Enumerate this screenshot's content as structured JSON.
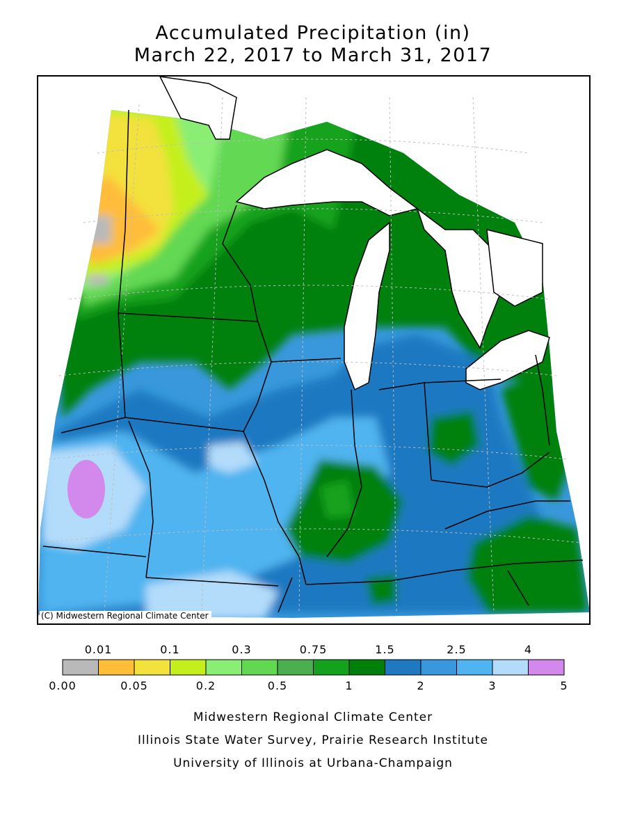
{
  "title": {
    "line1": "Accumulated Precipitation (in)",
    "line2": "March 22, 2017 to March 31, 2017"
  },
  "map": {
    "copyright": "(C) Midwestern Regional Climate Center"
  },
  "legend": {
    "top_labels": [
      "0.01",
      "0.1",
      "0.3",
      "0.75",
      "1.5",
      "2.5",
      "4"
    ],
    "bottom_labels": [
      "0.00",
      "0.05",
      "0.2",
      "0.5",
      "1",
      "2",
      "3",
      "5"
    ],
    "colors": [
      "#b9b9b9",
      "#ffbd3a",
      "#f3e13c",
      "#c5ef1c",
      "#8aee74",
      "#62d852",
      "#4caf4f",
      "#14a21e",
      "#00800a",
      "#1f79c1",
      "#3898db",
      "#4fb4ef",
      "#b3dcfb",
      "#d389ec"
    ]
  },
  "footer": {
    "line1": "Midwestern Regional Climate Center",
    "line2": "Illinois State Water Survey, Prairie Research Institute",
    "line3": "University of Illinois at Urbana-Champaign"
  }
}
